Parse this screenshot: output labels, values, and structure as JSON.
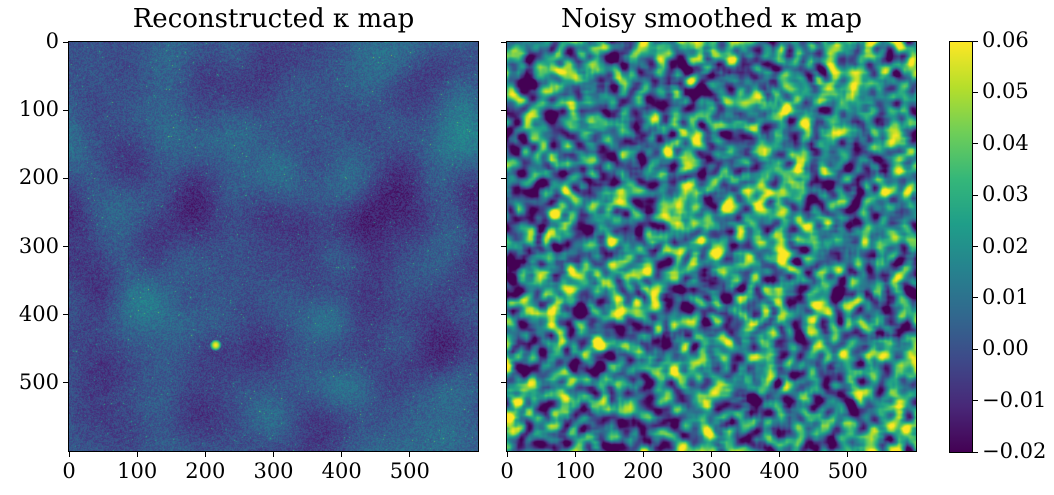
{
  "chart_data": [
    {
      "type": "heatmap",
      "title": "Reconstructed κ map",
      "x_ticks": [
        0,
        100,
        200,
        300,
        400,
        500
      ],
      "y_ticks": [
        0,
        100,
        200,
        300,
        400,
        500
      ],
      "x_range": [
        0,
        600
      ],
      "y_range": [
        0,
        600
      ],
      "y_inverted": true,
      "colormap": "viridis",
      "value_range": [
        -0.02,
        0.06
      ],
      "bright_spot": {
        "x": 215,
        "y": 445,
        "value": 0.06
      },
      "typical_level": 0.0
    },
    {
      "type": "heatmap",
      "title": "Noisy smoothed κ map",
      "x_ticks": [
        0,
        100,
        200,
        300,
        400,
        500
      ],
      "y_ticks": [
        0,
        100,
        200,
        300,
        400,
        500
      ],
      "y_tick_labels_shown": false,
      "x_range": [
        0,
        600
      ],
      "y_range": [
        0,
        600
      ],
      "y_inverted": true,
      "colormap": "viridis",
      "value_range": [
        -0.02,
        0.06
      ],
      "typical_level": 0.015
    }
  ],
  "colorbar": {
    "min": -0.02,
    "max": 0.06,
    "ticks": [
      "0.06",
      "0.05",
      "0.04",
      "0.03",
      "0.02",
      "0.01",
      "0.00",
      "−0.01",
      "−0.02"
    ],
    "colors": [
      "#440154",
      "#482878",
      "#3e4989",
      "#31688e",
      "#26828e",
      "#1f9e89",
      "#35b779",
      "#6ece58",
      "#b5de2b",
      "#fde725"
    ]
  }
}
